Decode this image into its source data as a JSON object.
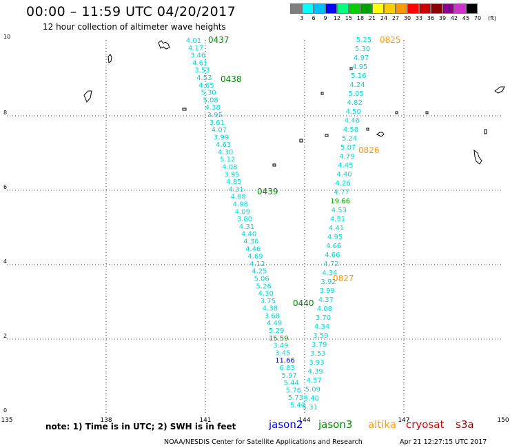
{
  "header": {
    "title": "00:00 – 11:59 UTC 04/20/2017",
    "subtitle": "12 hour collection of altimeter wave heights"
  },
  "colorbar": {
    "colors": [
      "#7f7f7f",
      "#00ffff",
      "#00bfff",
      "#0000ff",
      "#00ff7f",
      "#00d000",
      "#00a000",
      "#ffff00",
      "#ffcc00",
      "#ff9900",
      "#ff0000",
      "#c80000",
      "#8b0000",
      "#8b008b",
      "#cc33cc",
      "#000000"
    ],
    "labels": [
      "3",
      "6",
      "9",
      "12",
      "15",
      "18",
      "21",
      "24",
      "27",
      "30",
      "33",
      "36",
      "39",
      "42",
      "45",
      "70",
      "(ft)"
    ]
  },
  "axes": {
    "x_ticks": [
      "135",
      "138",
      "141",
      "144",
      "147",
      "150"
    ],
    "y_ticks": [
      "0",
      "2",
      "4",
      "6",
      "8",
      "10"
    ]
  },
  "tracks": {
    "left": {
      "swh": [
        "4.01",
        "4.17",
        "3.46",
        "4.61",
        "3.53",
        "4.53",
        "4.65",
        "5.30",
        "5.08",
        "4.38",
        "3.95",
        "3.61",
        "4.07",
        "3.99",
        "4.63",
        "4.30",
        "5.12",
        "4.08",
        "3.95",
        "4.85",
        "4.31",
        "4.88",
        "4.98",
        "4.09",
        "3.80",
        "4.31",
        "4.40",
        "4.36",
        "4.46",
        "4.69",
        "4.12",
        "4.25",
        "5.06",
        "5.26",
        "4.30",
        "3.75",
        "4.38",
        "3.68",
        "4.49",
        "5.29",
        "15.59",
        "3.49",
        "3.45",
        "11.66",
        "6.83",
        "5.97",
        "5.44",
        "5.76",
        "5.73",
        "5.40"
      ],
      "times": [
        "0437",
        "0438",
        "0439",
        "0440"
      ]
    },
    "right": {
      "swh": [
        "5.25",
        "5.30",
        "4.97",
        "4.95",
        "5.16",
        "4.24",
        "5.05",
        "4.82",
        "4.50",
        "4.46",
        "4.58",
        "5.24",
        "5.07",
        "4.79",
        "4.45",
        "4.40",
        "4.26",
        "4.77",
        "19.66",
        "4.53",
        "4.51",
        "4.41",
        "4.95",
        "4.66",
        "4.66",
        "4.72",
        "4.34",
        "3.92",
        "3.99",
        "4.37",
        "4.08",
        "3.70",
        "4.34",
        "3.59",
        "3.79",
        "3.53",
        "3.93",
        "4.39",
        "4.57",
        "5.09",
        "5.40",
        "5.31"
      ],
      "times": [
        "0825",
        "0826",
        "0827"
      ]
    }
  },
  "colors": {
    "swh_low": "#00d8d8",
    "swh_mid": "#009900",
    "swh_high": "#0000cc",
    "time_jason3": "#008800",
    "time_altika": "#ff9900"
  },
  "footer": {
    "note": "note: 1) Time is in UTC; 2) SWH is in feet",
    "legend": [
      {
        "name": "jason2",
        "color": "#0000ff"
      },
      {
        "name": "jason3",
        "color": "#008800"
      },
      {
        "name": "altika",
        "color": "#ff9900"
      },
      {
        "name": "cryosat",
        "color": "#cc0000"
      },
      {
        "name": "s3a",
        "color": "#8b0000"
      }
    ],
    "credit": "NOAA/NESDIS Center for Satellite Applications and Research",
    "timestamp": "Apr 21 12:27:15 UTC 2017"
  }
}
